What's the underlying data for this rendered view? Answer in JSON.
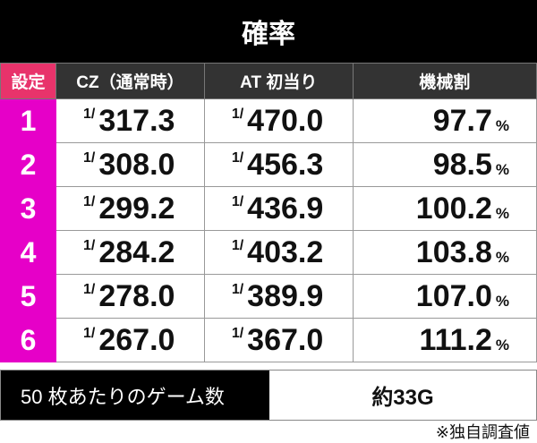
{
  "title": "確率",
  "headers": [
    "設定",
    "CZ（通常時）",
    "AT 初当り",
    "機械割"
  ],
  "rows": [
    {
      "setting": "1",
      "cz": "317.3",
      "at": "470.0",
      "payout": "97.7"
    },
    {
      "setting": "2",
      "cz": "308.0",
      "at": "456.3",
      "payout": "98.5"
    },
    {
      "setting": "3",
      "cz": "299.2",
      "at": "436.9",
      "payout": "100.2"
    },
    {
      "setting": "4",
      "cz": "284.2",
      "at": "403.2",
      "payout": "103.8"
    },
    {
      "setting": "5",
      "cz": "278.0",
      "at": "389.9",
      "payout": "107.0"
    },
    {
      "setting": "6",
      "cz": "267.0",
      "at": "367.0",
      "payout": "111.2"
    }
  ],
  "fraction_prefix": "1/",
  "percent": "%",
  "games_per_50": {
    "label": "50 枚あたりのゲーム数",
    "value": "約33G"
  },
  "note": "※独自調査値",
  "colors": {
    "setting_header": "#e8336b",
    "setting_cells": "#e600c8",
    "header": "#333333",
    "title_bg": "#000000"
  }
}
